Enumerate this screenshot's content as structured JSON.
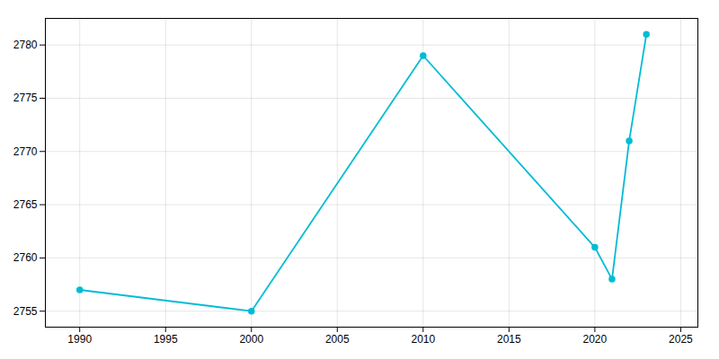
{
  "chart_data": {
    "type": "line",
    "x": [
      1990,
      2000,
      2010,
      2020,
      2021,
      2022,
      2023
    ],
    "values": [
      2757,
      2755,
      2779,
      2761,
      2758,
      2771,
      2781
    ],
    "color": "#00bcd4",
    "marker": "circle",
    "xlim": [
      1988,
      2026
    ],
    "ylim": [
      2753.5,
      2782.5
    ],
    "xticks": [
      1990,
      1995,
      2000,
      2005,
      2010,
      2015,
      2020,
      2025
    ],
    "yticks": [
      2755,
      2760,
      2765,
      2770,
      2775,
      2780
    ],
    "grid": true
  }
}
